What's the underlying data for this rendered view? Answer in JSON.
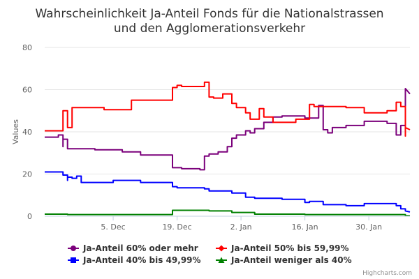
{
  "chart_data": {
    "type": "line",
    "title_lines": [
      "Wahrscheinlichkeit Ja-Anteil Fonds für die Nationalstrassen",
      "und den Agglomerationsverkehr"
    ],
    "ylabel": "Values",
    "ylim": [
      0,
      80
    ],
    "yticks": [
      0,
      20,
      40,
      60,
      80
    ],
    "x_domain": [
      "2016-11-20",
      "2017-02-08"
    ],
    "x_ticks": [
      {
        "date": "2016-12-05",
        "label": "5. Dec"
      },
      {
        "date": "2016-12-19",
        "label": "19. Dec"
      },
      {
        "date": "2017-01-02",
        "label": "2. Jan"
      },
      {
        "date": "2017-01-16",
        "label": "16. Jan"
      },
      {
        "date": "2017-01-30",
        "label": "30. Jan"
      }
    ],
    "grid": "horizontal",
    "legend_position": "bottom",
    "credit": "Highcharts.com",
    "series": [
      {
        "name": "Ja-Anteil 60% oder mehr",
        "color": "#7b007b",
        "marker": "circle",
        "points": [
          [
            "2016-11-20",
            37.5
          ],
          [
            "2016-11-23",
            37.5
          ],
          [
            "2016-11-23",
            38.5
          ],
          [
            "2016-11-24",
            38.5
          ],
          [
            "2016-11-24",
            33
          ],
          [
            "2016-11-24",
            36.5
          ],
          [
            "2016-11-25",
            36.5
          ],
          [
            "2016-11-25",
            32
          ],
          [
            "2016-12-01",
            32
          ],
          [
            "2016-12-01",
            31.5
          ],
          [
            "2016-12-07",
            31.5
          ],
          [
            "2016-12-07",
            30.5
          ],
          [
            "2016-12-11",
            30.5
          ],
          [
            "2016-12-11",
            29
          ],
          [
            "2016-12-18",
            29
          ],
          [
            "2016-12-18",
            23
          ],
          [
            "2016-12-20",
            23
          ],
          [
            "2016-12-20",
            22.5
          ],
          [
            "2016-12-24",
            22.5
          ],
          [
            "2016-12-24",
            22
          ],
          [
            "2016-12-25",
            22
          ],
          [
            "2016-12-25",
            28.5
          ],
          [
            "2016-12-26",
            28.5
          ],
          [
            "2016-12-26",
            29.5
          ],
          [
            "2016-12-28",
            29.5
          ],
          [
            "2016-12-28",
            30.5
          ],
          [
            "2016-12-30",
            30.5
          ],
          [
            "2016-12-30",
            33
          ],
          [
            "2016-12-31",
            33
          ],
          [
            "2016-12-31",
            37
          ],
          [
            "2017-01-01",
            37
          ],
          [
            "2017-01-01",
            38.5
          ],
          [
            "2017-01-03",
            38.5
          ],
          [
            "2017-01-03",
            40.5
          ],
          [
            "2017-01-04",
            40.5
          ],
          [
            "2017-01-04",
            39.5
          ],
          [
            "2017-01-05",
            39.5
          ],
          [
            "2017-01-05",
            41.5
          ],
          [
            "2017-01-07",
            41.5
          ],
          [
            "2017-01-07",
            44.5
          ],
          [
            "2017-01-09",
            44.5
          ],
          [
            "2017-01-09",
            47
          ],
          [
            "2017-01-11",
            47
          ],
          [
            "2017-01-11",
            47.5
          ],
          [
            "2017-01-16",
            47.5
          ],
          [
            "2017-01-16",
            46.5
          ],
          [
            "2017-01-19",
            46.5
          ],
          [
            "2017-01-19",
            52.5
          ],
          [
            "2017-01-20",
            52.5
          ],
          [
            "2017-01-20",
            41
          ],
          [
            "2017-01-21",
            41
          ],
          [
            "2017-01-21",
            39.5
          ],
          [
            "2017-01-22",
            39.5
          ],
          [
            "2017-01-22",
            42
          ],
          [
            "2017-01-25",
            42
          ],
          [
            "2017-01-25",
            43
          ],
          [
            "2017-01-29",
            43
          ],
          [
            "2017-01-29",
            45
          ],
          [
            "2017-02-03",
            45
          ],
          [
            "2017-02-03",
            44
          ],
          [
            "2017-02-05",
            44
          ],
          [
            "2017-02-05",
            38.5
          ],
          [
            "2017-02-06",
            38.5
          ],
          [
            "2017-02-06",
            43
          ],
          [
            "2017-02-07",
            43
          ],
          [
            "2017-02-07",
            55
          ],
          [
            "2017-02-07",
            60.5
          ],
          [
            "2017-02-08",
            58
          ]
        ]
      },
      {
        "name": "Ja-Anteil 50% bis 59,99%",
        "color": "#ff0000",
        "marker": "diamond",
        "points": [
          [
            "2016-11-20",
            40.5
          ],
          [
            "2016-11-24",
            40.5
          ],
          [
            "2016-11-24",
            44
          ],
          [
            "2016-11-24",
            50
          ],
          [
            "2016-11-25",
            50
          ],
          [
            "2016-11-25",
            42
          ],
          [
            "2016-11-26",
            42
          ],
          [
            "2016-11-26",
            51.5
          ],
          [
            "2016-12-03",
            51.5
          ],
          [
            "2016-12-03",
            50.5
          ],
          [
            "2016-12-09",
            50.5
          ],
          [
            "2016-12-09",
            55
          ],
          [
            "2016-12-18",
            55
          ],
          [
            "2016-12-18",
            61
          ],
          [
            "2016-12-19",
            61
          ],
          [
            "2016-12-19",
            62
          ],
          [
            "2016-12-20",
            62
          ],
          [
            "2016-12-20",
            61.5
          ],
          [
            "2016-12-25",
            61.5
          ],
          [
            "2016-12-25",
            63.5
          ],
          [
            "2016-12-26",
            63.5
          ],
          [
            "2016-12-26",
            56.5
          ],
          [
            "2016-12-27",
            56.5
          ],
          [
            "2016-12-27",
            56
          ],
          [
            "2016-12-29",
            56
          ],
          [
            "2016-12-29",
            58
          ],
          [
            "2016-12-31",
            58
          ],
          [
            "2016-12-31",
            53.5
          ],
          [
            "2017-01-01",
            53.5
          ],
          [
            "2017-01-01",
            51.5
          ],
          [
            "2017-01-03",
            51.5
          ],
          [
            "2017-01-03",
            49
          ],
          [
            "2017-01-04",
            49
          ],
          [
            "2017-01-04",
            46
          ],
          [
            "2017-01-06",
            46
          ],
          [
            "2017-01-06",
            51
          ],
          [
            "2017-01-07",
            51
          ],
          [
            "2017-01-07",
            47
          ],
          [
            "2017-01-09",
            47
          ],
          [
            "2017-01-09",
            44.5
          ],
          [
            "2017-01-14",
            44.5
          ],
          [
            "2017-01-14",
            46
          ],
          [
            "2017-01-17",
            46
          ],
          [
            "2017-01-17",
            53
          ],
          [
            "2017-01-18",
            53
          ],
          [
            "2017-01-18",
            52
          ],
          [
            "2017-01-25",
            52
          ],
          [
            "2017-01-25",
            51.5
          ],
          [
            "2017-01-29",
            51.5
          ],
          [
            "2017-01-29",
            49
          ],
          [
            "2017-02-03",
            49
          ],
          [
            "2017-02-03",
            50
          ],
          [
            "2017-02-05",
            50
          ],
          [
            "2017-02-05",
            54
          ],
          [
            "2017-02-06",
            54
          ],
          [
            "2017-02-06",
            52
          ],
          [
            "2017-02-07",
            52
          ],
          [
            "2017-02-07",
            38
          ],
          [
            "2017-02-07",
            42
          ],
          [
            "2017-02-08",
            41
          ]
        ]
      },
      {
        "name": "Ja-Anteil 40% bis 49,99%",
        "color": "#0000ff",
        "marker": "square",
        "points": [
          [
            "2016-11-20",
            21
          ],
          [
            "2016-11-24",
            21
          ],
          [
            "2016-11-24",
            19.5
          ],
          [
            "2016-11-25",
            19.5
          ],
          [
            "2016-11-25",
            17
          ],
          [
            "2016-11-25",
            18.5
          ],
          [
            "2016-11-26",
            18.5
          ],
          [
            "2016-11-26",
            18
          ],
          [
            "2016-11-27",
            18
          ],
          [
            "2016-11-27",
            19
          ],
          [
            "2016-11-28",
            19
          ],
          [
            "2016-11-28",
            16
          ],
          [
            "2016-12-05",
            16
          ],
          [
            "2016-12-05",
            17
          ],
          [
            "2016-12-11",
            17
          ],
          [
            "2016-12-11",
            16
          ],
          [
            "2016-12-18",
            16
          ],
          [
            "2016-12-18",
            14
          ],
          [
            "2016-12-19",
            14
          ],
          [
            "2016-12-19",
            13.5
          ],
          [
            "2016-12-25",
            13.5
          ],
          [
            "2016-12-25",
            13
          ],
          [
            "2016-12-26",
            13
          ],
          [
            "2016-12-26",
            12
          ],
          [
            "2016-12-31",
            12
          ],
          [
            "2016-12-31",
            11
          ],
          [
            "2017-01-03",
            11
          ],
          [
            "2017-01-03",
            9
          ],
          [
            "2017-01-05",
            9
          ],
          [
            "2017-01-05",
            8.5
          ],
          [
            "2017-01-11",
            8.5
          ],
          [
            "2017-01-11",
            8
          ],
          [
            "2017-01-16",
            8
          ],
          [
            "2017-01-16",
            6.5
          ],
          [
            "2017-01-17",
            6.5
          ],
          [
            "2017-01-17",
            7
          ],
          [
            "2017-01-20",
            7
          ],
          [
            "2017-01-20",
            5.5
          ],
          [
            "2017-01-25",
            5.5
          ],
          [
            "2017-01-25",
            5
          ],
          [
            "2017-01-29",
            5
          ],
          [
            "2017-01-29",
            6
          ],
          [
            "2017-02-05",
            6
          ],
          [
            "2017-02-05",
            5
          ],
          [
            "2017-02-06",
            5
          ],
          [
            "2017-02-06",
            3.5
          ],
          [
            "2017-02-07",
            3.5
          ],
          [
            "2017-02-07",
            2.5
          ],
          [
            "2017-02-08",
            2
          ]
        ]
      },
      {
        "name": "Ja-Anteil weniger als 40%",
        "color": "#008000",
        "marker": "triangle",
        "points": [
          [
            "2016-11-20",
            1
          ],
          [
            "2016-11-25",
            1
          ],
          [
            "2016-11-25",
            0.8
          ],
          [
            "2016-12-18",
            0.8
          ],
          [
            "2016-12-18",
            2.8
          ],
          [
            "2016-12-26",
            2.8
          ],
          [
            "2016-12-26",
            2.5
          ],
          [
            "2016-12-31",
            2.5
          ],
          [
            "2016-12-31",
            1.8
          ],
          [
            "2017-01-05",
            1.8
          ],
          [
            "2017-01-05",
            1
          ],
          [
            "2017-01-16",
            1
          ],
          [
            "2017-01-16",
            0.8
          ],
          [
            "2017-02-07",
            0.8
          ],
          [
            "2017-02-07",
            0.3
          ],
          [
            "2017-02-08",
            0.2
          ]
        ]
      }
    ]
  }
}
